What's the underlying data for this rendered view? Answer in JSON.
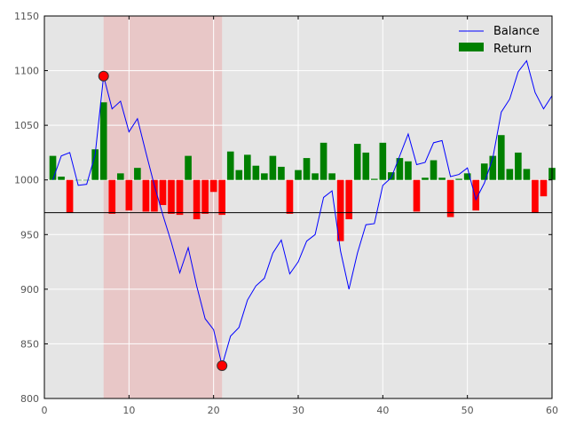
{
  "chart_data": {
    "type": "line",
    "xlim": [
      0,
      60
    ],
    "ylim": [
      800,
      1150
    ],
    "xticks": [
      0,
      10,
      20,
      30,
      40,
      50,
      60
    ],
    "yticks": [
      800,
      850,
      900,
      950,
      1000,
      1050,
      1100,
      1150
    ],
    "grid": true,
    "legend": "top-right",
    "reference_line": 970,
    "bar_baseline": 1000,
    "shaded_region": {
      "x_start": 7,
      "x_end": 21,
      "color": "#e8c7c7"
    },
    "markers": [
      {
        "x": 7,
        "y": 1095
      },
      {
        "x": 21,
        "y": 830
      }
    ],
    "series": [
      {
        "name": "Balance",
        "kind": "line",
        "color": "#0000ff",
        "x": [
          1,
          2,
          3,
          4,
          5,
          6,
          7,
          8,
          9,
          10,
          11,
          12,
          13,
          14,
          15,
          16,
          17,
          18,
          19,
          20,
          21,
          22,
          23,
          24,
          25,
          26,
          27,
          28,
          29,
          30,
          31,
          32,
          33,
          34,
          35,
          36,
          37,
          38,
          39,
          40,
          41,
          42,
          43,
          44,
          45,
          46,
          47,
          48,
          49,
          50,
          51,
          52,
          53,
          54,
          55,
          56,
          57,
          58,
          59,
          60
        ],
        "values": [
          1000,
          1022,
          1025,
          995,
          996,
          1023,
          1095,
          1065,
          1072,
          1044,
          1056,
          1025,
          995,
          968,
          943,
          915,
          938,
          903,
          873,
          863,
          830,
          857,
          865,
          890,
          903,
          910,
          933,
          945,
          914,
          925,
          944,
          950,
          984,
          990,
          935,
          900,
          933,
          959,
          960,
          995,
          1002,
          1022,
          1042,
          1014,
          1016,
          1034,
          1036,
          1003,
          1005,
          1011,
          982,
          997,
          1020,
          1062,
          1074,
          1099,
          1109,
          1080,
          1065,
          1077
        ]
      },
      {
        "name": "Return",
        "kind": "bar",
        "positive_color": "#008000",
        "negative_color": "#ff0000",
        "x": [
          1,
          2,
          3,
          4,
          5,
          6,
          7,
          8,
          9,
          10,
          11,
          12,
          13,
          14,
          15,
          16,
          17,
          18,
          19,
          20,
          21,
          22,
          23,
          24,
          25,
          26,
          27,
          28,
          29,
          30,
          31,
          32,
          33,
          34,
          35,
          36,
          37,
          38,
          39,
          40,
          41,
          42,
          43,
          44,
          45,
          46,
          47,
          48,
          49,
          50,
          51,
          52,
          53,
          54,
          55,
          56,
          57,
          58,
          59,
          60
        ],
        "values": [
          22,
          3,
          -30,
          0,
          0,
          28,
          71,
          -31,
          6,
          -28,
          11,
          -29,
          -29,
          -23,
          -31,
          -32,
          22,
          -36,
          -31,
          -11,
          -32,
          26,
          9,
          23,
          13,
          6,
          22,
          12,
          -31,
          9,
          20,
          6,
          34,
          6,
          -56,
          -36,
          33,
          25,
          1,
          34,
          7,
          20,
          17,
          -29,
          2,
          18,
          2,
          -34,
          1,
          6,
          -28,
          15,
          22,
          41,
          10,
          25,
          10,
          -30,
          -15,
          11
        ]
      }
    ]
  }
}
